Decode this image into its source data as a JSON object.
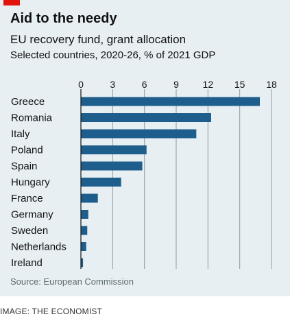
{
  "header": {
    "title": "Aid to the needy",
    "subtitle": "EU recovery fund, grant allocation",
    "note": "Selected countries, 2020-26, % of 2021 GDP"
  },
  "footer": {
    "source": "Source: European Commission",
    "credit": "IMAGE: THE ECONOMIST"
  },
  "colors": {
    "bar": "#1d5e8c",
    "background": "#e7eff3",
    "grid": "#8e9aa0",
    "accent": "#e3120b"
  },
  "chart_data": {
    "type": "bar",
    "orientation": "horizontal",
    "title": "Aid to the needy",
    "subtitle": "EU recovery fund, grant allocation",
    "xlim": [
      0,
      18
    ],
    "xticks": [
      0,
      3,
      6,
      9,
      12,
      15,
      18
    ],
    "xtick_position": "top",
    "grid": true,
    "categories": [
      "Greece",
      "Romania",
      "Italy",
      "Poland",
      "Spain",
      "Hungary",
      "France",
      "Germany",
      "Sweden",
      "Netherlands",
      "Ireland"
    ],
    "values": [
      16.9,
      12.3,
      10.9,
      6.2,
      5.8,
      3.8,
      1.6,
      0.7,
      0.6,
      0.5,
      0.2
    ]
  }
}
